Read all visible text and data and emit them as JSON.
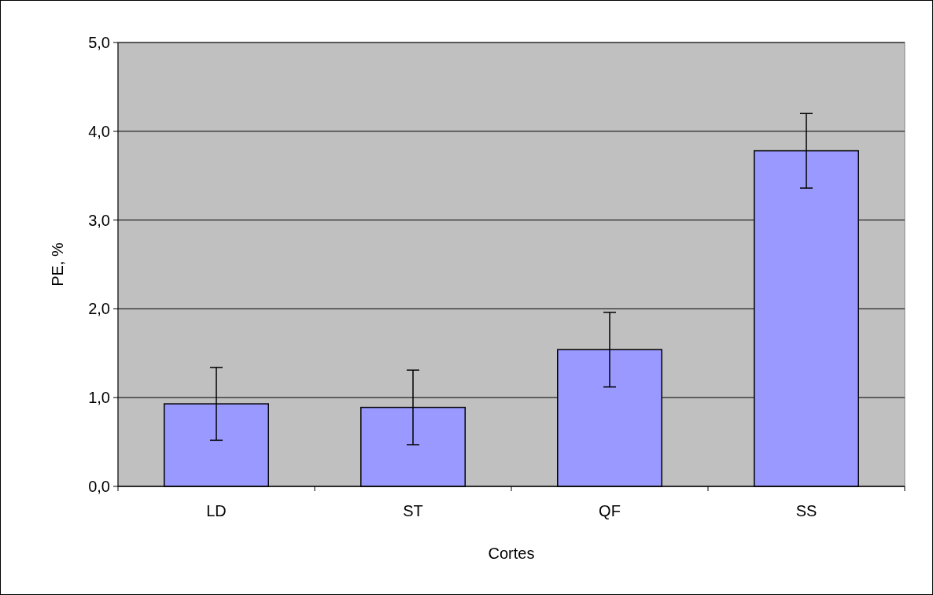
{
  "chart_data": {
    "type": "bar",
    "xlabel": "Cortes",
    "ylabel": "PE, %",
    "categories": [
      "LD",
      "ST",
      "QF",
      "SS"
    ],
    "values": [
      0.93,
      0.89,
      1.54,
      3.78
    ],
    "errors": [
      0.41,
      0.42,
      0.42,
      0.42
    ],
    "color": "#9999ff",
    "ylim": [
      0,
      5
    ],
    "yticks": [
      {
        "value": 0,
        "label": "0,0"
      },
      {
        "value": 1,
        "label": "1,0"
      },
      {
        "value": 2,
        "label": "2,0"
      },
      {
        "value": 3,
        "label": "3,0"
      },
      {
        "value": 4,
        "label": "4,0"
      },
      {
        "value": 5,
        "label": "5,0"
      }
    ],
    "grid": "y"
  }
}
